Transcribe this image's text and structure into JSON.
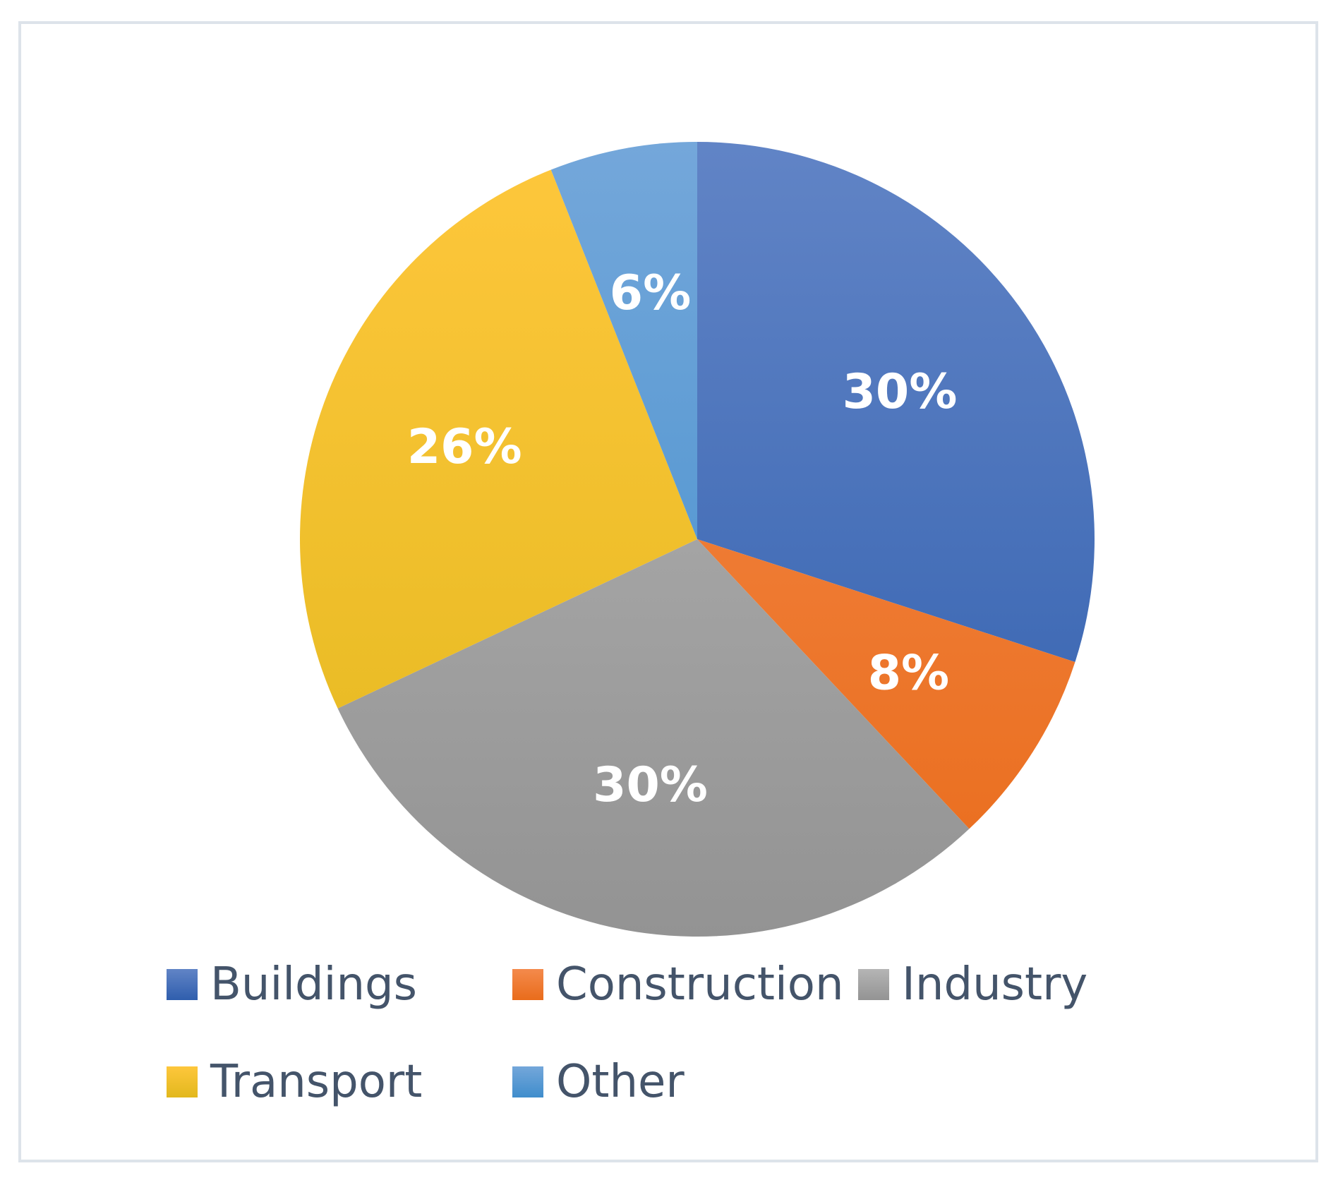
{
  "chart_data": {
    "type": "pie",
    "title": "",
    "slices": [
      {
        "name": "Buildings",
        "value": 30,
        "label": "30%",
        "color_top": "#6184c6",
        "color_bottom": "#2f5ead"
      },
      {
        "name": "Construction",
        "value": 8,
        "label": "8%",
        "color_top": "#f48a4c",
        "color_bottom": "#e96c1b"
      },
      {
        "name": "Industry",
        "value": 30,
        "label": "30%",
        "color_top": "#b5b5b5",
        "color_bottom": "#939393"
      },
      {
        "name": "Transport",
        "value": 26,
        "label": "26%",
        "color_top": "#fec73c",
        "color_bottom": "#e2b81d"
      },
      {
        "name": "Other",
        "value": 6,
        "label": "6%",
        "color_top": "#74a7da",
        "color_bottom": "#3f8dcc"
      }
    ],
    "legend_position": "bottom"
  }
}
